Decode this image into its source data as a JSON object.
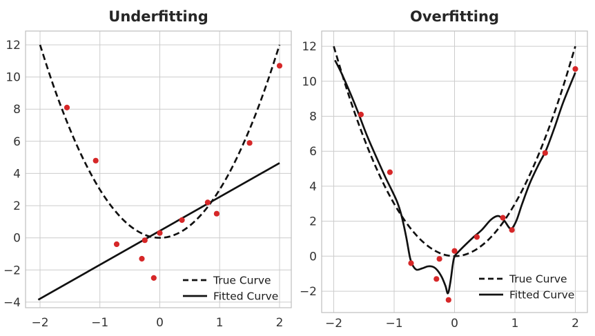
{
  "figure": {
    "background": "#ffffff"
  },
  "colors": {
    "curve": "#111111",
    "point": "#d62728",
    "grid": "#cccccc",
    "frame": "#bdbdbd",
    "title": "#262626",
    "tick": "#333333"
  },
  "chart_data": [
    {
      "type": "scatter",
      "title": "Underfitting",
      "xlabel": "",
      "ylabel": "",
      "grid": true,
      "legend_position": "lower-right",
      "xlim": [
        -2.242,
        2.196
      ],
      "ylim": [
        -4.347,
        12.857
      ],
      "axes_rect": [
        37,
        45,
        422,
        446
      ],
      "xtick_y": 473,
      "legend_dy": [
        40,
        17
      ],
      "xticks": [
        {
          "v": -2,
          "label": "−2"
        },
        {
          "v": -1,
          "label": "−1"
        },
        {
          "v": 0,
          "label": "0"
        },
        {
          "v": 1,
          "label": "1"
        },
        {
          "v": 2,
          "label": "2"
        }
      ],
      "yticks": [
        {
          "v": -4,
          "label": "−4"
        },
        {
          "v": -2,
          "label": "−2"
        },
        {
          "v": 0,
          "label": "0"
        },
        {
          "v": 2,
          "label": "2"
        },
        {
          "v": 4,
          "label": "4"
        },
        {
          "v": 6,
          "label": "6"
        },
        {
          "v": 8,
          "label": "8"
        },
        {
          "v": 10,
          "label": "10"
        },
        {
          "v": 12,
          "label": "12"
        }
      ],
      "series": [
        {
          "name": "True Curve",
          "style": "dashed",
          "smooth": true,
          "points": [
            [
              -2,
              12
            ],
            [
              -1.8,
              9.72
            ],
            [
              -1.6,
              7.68
            ],
            [
              -1.4,
              5.88
            ],
            [
              -1.2,
              4.32
            ],
            [
              -1,
              3
            ],
            [
              -0.8,
              1.92
            ],
            [
              -0.6,
              1.08
            ],
            [
              -0.4,
              0.48
            ],
            [
              -0.2,
              0.12
            ],
            [
              0,
              0
            ],
            [
              0.2,
              0.12
            ],
            [
              0.4,
              0.48
            ],
            [
              0.6,
              1.08
            ],
            [
              0.8,
              1.92
            ],
            [
              1,
              3
            ],
            [
              1.2,
              4.32
            ],
            [
              1.4,
              5.88
            ],
            [
              1.6,
              7.68
            ],
            [
              1.8,
              9.72
            ],
            [
              2,
              12
            ]
          ]
        },
        {
          "name": "Fitted Curve",
          "style": "solid",
          "smooth": false,
          "points": [
            [
              -2.03,
              -3.85
            ],
            [
              2.0,
              4.65
            ]
          ]
        }
      ],
      "scatter": {
        "name": "Data points",
        "points": [
          [
            -1.55,
            8.1
          ],
          [
            -1.07,
            4.8
          ],
          [
            -0.72,
            -0.4
          ],
          [
            -0.3,
            -1.3
          ],
          [
            -0.25,
            -0.15
          ],
          [
            -0.1,
            -2.5
          ],
          [
            0,
            0.3
          ],
          [
            0.37,
            1.1
          ],
          [
            0.8,
            2.2
          ],
          [
            0.95,
            1.5
          ],
          [
            1.5,
            5.9
          ],
          [
            2,
            10.7
          ]
        ]
      },
      "legend": {
        "entries": [
          {
            "label": "True Curve",
            "style": "dashed"
          },
          {
            "label": "Fitted Curve",
            "style": "solid"
          }
        ]
      }
    },
    {
      "type": "scatter",
      "title": "Overfitting",
      "xlabel": "",
      "ylabel": "",
      "grid": true,
      "legend_position": "lower-right",
      "xlim": [
        -2.2,
        2.2
      ],
      "ylim": [
        -3.22,
        12.87
      ],
      "axes_rect": [
        466,
        45,
        851,
        453
      ],
      "xtick_y": 474,
      "legend_dy": [
        49,
        26
      ],
      "xticks": [
        {
          "v": -2,
          "label": "−2"
        },
        {
          "v": -1,
          "label": "−1"
        },
        {
          "v": 0,
          "label": "0"
        },
        {
          "v": 1,
          "label": "1"
        },
        {
          "v": 2,
          "label": "2"
        }
      ],
      "yticks": [
        {
          "v": -2,
          "label": "−2"
        },
        {
          "v": 0,
          "label": "0"
        },
        {
          "v": 2,
          "label": "2"
        },
        {
          "v": 4,
          "label": "4"
        },
        {
          "v": 6,
          "label": "6"
        },
        {
          "v": 8,
          "label": "8"
        },
        {
          "v": 10,
          "label": "10"
        },
        {
          "v": 12,
          "label": "12"
        }
      ],
      "series": [
        {
          "name": "True Curve",
          "style": "dashed",
          "smooth": true,
          "points": [
            [
              -2,
              12
            ],
            [
              -1.8,
              9.72
            ],
            [
              -1.6,
              7.68
            ],
            [
              -1.4,
              5.88
            ],
            [
              -1.2,
              4.32
            ],
            [
              -1,
              3
            ],
            [
              -0.8,
              1.92
            ],
            [
              -0.6,
              1.08
            ],
            [
              -0.4,
              0.48
            ],
            [
              -0.2,
              0.12
            ],
            [
              0,
              0
            ],
            [
              0.2,
              0.12
            ],
            [
              0.4,
              0.48
            ],
            [
              0.6,
              1.08
            ],
            [
              0.8,
              1.92
            ],
            [
              1,
              3
            ],
            [
              1.2,
              4.32
            ],
            [
              1.4,
              5.88
            ],
            [
              1.6,
              7.68
            ],
            [
              1.8,
              9.72
            ],
            [
              2,
              12
            ]
          ]
        },
        {
          "name": "Fitted Curve",
          "style": "solid",
          "smooth": true,
          "points": [
            [
              -1.98,
              11.2
            ],
            [
              -1.87,
              10.45
            ],
            [
              -1.7,
              9.1
            ],
            [
              -1.6,
              8.25
            ],
            [
              -1.45,
              6.9
            ],
            [
              -1.3,
              5.7
            ],
            [
              -1.15,
              4.55
            ],
            [
              -1.05,
              3.85
            ],
            [
              -0.95,
              3.1
            ],
            [
              -0.88,
              2.35
            ],
            [
              -0.8,
              1.1
            ],
            [
              -0.74,
              -0.05
            ],
            [
              -0.7,
              -0.48
            ],
            [
              -0.63,
              -0.77
            ],
            [
              -0.54,
              -0.7
            ],
            [
              -0.44,
              -0.58
            ],
            [
              -0.36,
              -0.6
            ],
            [
              -0.29,
              -0.78
            ],
            [
              -0.21,
              -1.2
            ],
            [
              -0.15,
              -1.7
            ],
            [
              -0.11,
              -2.12
            ],
            [
              -0.07,
              -1.5
            ],
            [
              -0.03,
              -0.5
            ],
            [
              0,
              -0.02
            ],
            [
              0.07,
              0.27
            ],
            [
              0.17,
              0.62
            ],
            [
              0.3,
              1.05
            ],
            [
              0.45,
              1.5
            ],
            [
              0.6,
              2.08
            ],
            [
              0.72,
              2.3
            ],
            [
              0.82,
              2.05
            ],
            [
              0.93,
              1.57
            ],
            [
              1.02,
              2.0
            ],
            [
              1.12,
              3.0
            ],
            [
              1.25,
              4.2
            ],
            [
              1.4,
              5.3
            ],
            [
              1.52,
              6.1
            ],
            [
              1.65,
              7.3
            ],
            [
              1.8,
              8.8
            ],
            [
              2,
              10.5
            ]
          ]
        }
      ],
      "scatter": {
        "name": "Data points",
        "points": [
          [
            -1.55,
            8.1
          ],
          [
            -1.07,
            4.8
          ],
          [
            -0.72,
            -0.4
          ],
          [
            -0.3,
            -1.3
          ],
          [
            -0.25,
            -0.15
          ],
          [
            -0.1,
            -2.5
          ],
          [
            0,
            0.3
          ],
          [
            0.37,
            1.1
          ],
          [
            0.8,
            2.2
          ],
          [
            0.95,
            1.5
          ],
          [
            1.5,
            5.9
          ],
          [
            2,
            10.7
          ]
        ]
      },
      "legend": {
        "entries": [
          {
            "label": "True Curve",
            "style": "dashed"
          },
          {
            "label": "Fitted Curve",
            "style": "solid"
          }
        ]
      }
    }
  ]
}
